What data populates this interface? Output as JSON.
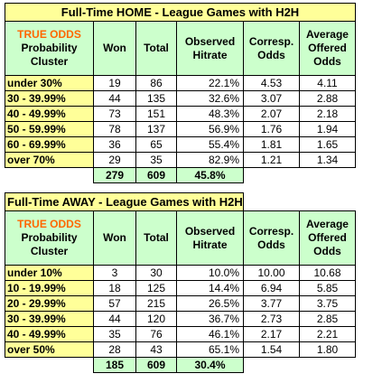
{
  "home": {
    "title": "Full-Time HOME - League Games with H2H",
    "header": {
      "true_odds": "TRUE ODDS",
      "prob_line1": "Probability",
      "prob_line2": "Cluster",
      "won": "Won",
      "total": "Total",
      "observed_line1": "Observed",
      "observed_line2": "Hitrate",
      "corresp_line1": "Corresp.",
      "corresp_line2": "Odds",
      "avg_line1": "Average",
      "avg_line2": "Offered",
      "avg_line3": "Odds"
    },
    "rows": [
      {
        "cluster": "under 30%",
        "won": "19",
        "total": "86",
        "hitrate": "22.1%",
        "corresp": "4.53",
        "offered": "4.11"
      },
      {
        "cluster": "30 - 39.99%",
        "won": "44",
        "total": "135",
        "hitrate": "32.6%",
        "corresp": "3.07",
        "offered": "2.88"
      },
      {
        "cluster": "40 - 49.99%",
        "won": "73",
        "total": "151",
        "hitrate": "48.3%",
        "corresp": "2.07",
        "offered": "2.18"
      },
      {
        "cluster": "50 - 59.99%",
        "won": "78",
        "total": "137",
        "hitrate": "56.9%",
        "corresp": "1.76",
        "offered": "1.94"
      },
      {
        "cluster": "60 - 69.99%",
        "won": "36",
        "total": "65",
        "hitrate": "55.4%",
        "corresp": "1.81",
        "offered": "1.65"
      },
      {
        "cluster": "over 70%",
        "won": "29",
        "total": "35",
        "hitrate": "82.9%",
        "corresp": "1.21",
        "offered": "1.34"
      }
    ],
    "totals": {
      "won": "279",
      "total": "609",
      "hitrate": "45.8%"
    }
  },
  "away": {
    "title": "Full-Time AWAY - League Games with H2H",
    "header": {
      "true_odds": "TRUE ODDS",
      "prob_line1": "Probability",
      "prob_line2": "Cluster",
      "won": "Won",
      "total": "Total",
      "observed_line1": "Observed",
      "observed_line2": "Hitrate",
      "corresp_line1": "Corresp.",
      "corresp_line2": "Odds",
      "avg_line1": "Average",
      "avg_line2": "Offered",
      "avg_line3": "Odds"
    },
    "rows": [
      {
        "cluster": "under 10%",
        "won": "3",
        "total": "30",
        "hitrate": "10.0%",
        "corresp": "10.00",
        "offered": "10.68"
      },
      {
        "cluster": "10 - 19.99%",
        "won": "18",
        "total": "125",
        "hitrate": "14.4%",
        "corresp": "6.94",
        "offered": "5.85"
      },
      {
        "cluster": "20 - 29.99%",
        "won": "57",
        "total": "215",
        "hitrate": "26.5%",
        "corresp": "3.77",
        "offered": "3.75"
      },
      {
        "cluster": "30 - 39.99%",
        "won": "44",
        "total": "120",
        "hitrate": "36.7%",
        "corresp": "2.73",
        "offered": "2.85"
      },
      {
        "cluster": "40 - 49.99%",
        "won": "35",
        "total": "76",
        "hitrate": "46.1%",
        "corresp": "2.17",
        "offered": "2.21"
      },
      {
        "cluster": "over 50%",
        "won": "28",
        "total": "43",
        "hitrate": "65.1%",
        "corresp": "1.54",
        "offered": "1.80"
      }
    ],
    "totals": {
      "won": "185",
      "total": "609",
      "hitrate": "30.4%"
    }
  }
}
